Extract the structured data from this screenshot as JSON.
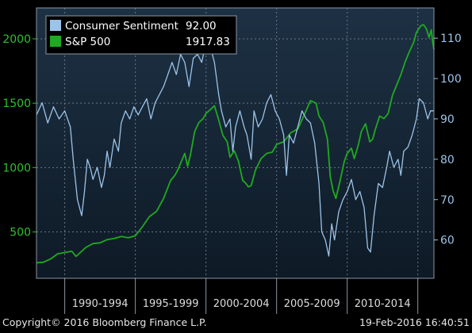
{
  "chart_data": {
    "type": "line",
    "x_range": [
      1988.0,
      2016.14
    ],
    "left_axis": {
      "ticks": [
        500,
        1000,
        1500,
        2000
      ],
      "range": [
        140,
        2240
      ],
      "color": "#2fbf2f"
    },
    "right_axis": {
      "ticks": [
        60,
        70,
        80,
        90,
        100,
        110
      ],
      "range": [
        50.5,
        117.5
      ],
      "color": "#9cc3e8"
    },
    "x_tick_labels": [
      {
        "label": "1990-1994",
        "center": 1992.5
      },
      {
        "label": "1995-1999",
        "center": 1997.5
      },
      {
        "label": "2000-2004",
        "center": 2002.5
      },
      {
        "label": "2005-2009",
        "center": 2007.5
      },
      {
        "label": "2010-2014",
        "center": 2012.5
      }
    ],
    "x_separators": [
      1990.0,
      1995.0,
      2000.0,
      2005.0,
      2010.0,
      2015.0
    ],
    "series": [
      {
        "name": "Consumer Sentiment",
        "last_value": "92.00",
        "axis": "right",
        "color": "#9cc3e8",
        "x": [
          1988.0,
          1988.4,
          1988.8,
          1989.2,
          1989.6,
          1990.0,
          1990.4,
          1990.6,
          1990.9,
          1991.2,
          1991.4,
          1991.6,
          1991.8,
          1992.0,
          1992.3,
          1992.6,
          1992.8,
          1993.0,
          1993.2,
          1993.5,
          1993.8,
          1994.0,
          1994.3,
          1994.6,
          1994.9,
          1995.2,
          1995.5,
          1995.8,
          1996.1,
          1996.4,
          1996.7,
          1997.0,
          1997.3,
          1997.6,
          1997.9,
          1998.2,
          1998.5,
          1998.8,
          1999.1,
          1999.4,
          1999.7,
          2000.0,
          2000.3,
          2000.6,
          2000.9,
          2001.1,
          2001.4,
          2001.7,
          2001.9,
          2002.1,
          2002.4,
          2002.7,
          2002.9,
          2003.2,
          2003.4,
          2003.7,
          2004.0,
          2004.3,
          2004.6,
          2004.9,
          2005.2,
          2005.5,
          2005.7,
          2005.9,
          2006.2,
          2006.5,
          2006.8,
          2007.1,
          2007.4,
          2007.7,
          2008.0,
          2008.2,
          2008.45,
          2008.7,
          2008.9,
          2009.1,
          2009.4,
          2009.7,
          2010.0,
          2010.3,
          2010.6,
          2010.9,
          2011.2,
          2011.45,
          2011.65,
          2011.9,
          2012.2,
          2012.5,
          2012.8,
          2013.0,
          2013.3,
          2013.6,
          2013.8,
          2014.0,
          2014.3,
          2014.6,
          2014.9,
          2015.1,
          2015.4,
          2015.7,
          2015.9,
          2016.14
        ],
        "values": [
          91,
          94,
          89,
          93,
          90,
          92,
          88,
          80,
          70,
          66,
          72,
          80,
          78,
          75,
          78,
          73,
          76,
          82,
          78,
          85,
          82,
          89,
          92,
          90,
          93,
          91,
          93,
          95,
          90,
          94,
          96,
          98,
          101,
          104,
          101,
          106,
          104,
          98,
          105,
          106,
          104,
          109,
          108,
          104,
          96,
          92,
          88,
          90,
          82,
          88,
          92,
          88,
          86,
          80,
          92,
          88,
          90,
          94,
          96,
          92,
          90,
          86,
          76,
          86,
          84,
          88,
          92,
          90,
          89,
          84,
          74,
          62,
          60,
          56,
          64,
          60,
          67,
          70,
          72,
          75,
          70,
          72,
          68,
          58,
          57,
          66,
          74,
          73,
          78,
          82,
          78,
          80,
          76,
          82,
          83,
          86,
          90,
          95,
          94,
          90,
          92,
          92
        ]
      },
      {
        "name": "S&P 500",
        "last_value": "1917.83",
        "axis": "left",
        "color": "#1faa1f",
        "x": [
          1988.0,
          1988.5,
          1989.0,
          1989.5,
          1990.0,
          1990.5,
          1990.8,
          1991.0,
          1991.5,
          1992.0,
          1992.5,
          1993.0,
          1993.5,
          1994.0,
          1994.5,
          1995.0,
          1995.5,
          1996.0,
          1996.5,
          1997.0,
          1997.5,
          1997.8,
          1998.0,
          1998.5,
          1998.7,
          1998.9,
          1999.2,
          1999.5,
          1999.8,
          2000.0,
          2000.3,
          2000.6,
          2000.9,
          2001.2,
          2001.5,
          2001.7,
          2002.0,
          2002.3,
          2002.6,
          2002.8,
          2003.0,
          2003.2,
          2003.5,
          2003.9,
          2004.3,
          2004.7,
          2005.0,
          2005.5,
          2006.0,
          2006.5,
          2007.0,
          2007.4,
          2007.8,
          2008.0,
          2008.3,
          2008.6,
          2008.8,
          2009.0,
          2009.2,
          2009.5,
          2009.8,
          2010.0,
          2010.3,
          2010.5,
          2010.8,
          2011.0,
          2011.3,
          2011.6,
          2011.8,
          2012.0,
          2012.3,
          2012.6,
          2012.9,
          2013.2,
          2013.5,
          2013.8,
          2014.1,
          2014.4,
          2014.7,
          2014.9,
          2015.2,
          2015.4,
          2015.6,
          2015.8,
          2015.95,
          2016.05,
          2016.14
        ],
        "values": [
          260,
          265,
          290,
          330,
          340,
          350,
          310,
          330,
          380,
          410,
          415,
          440,
          450,
          465,
          455,
          470,
          540,
          620,
          660,
          760,
          900,
          940,
          980,
          1110,
          1010,
          1100,
          1280,
          1350,
          1380,
          1420,
          1450,
          1480,
          1370,
          1250,
          1200,
          1080,
          1130,
          1050,
          900,
          880,
          850,
          860,
          980,
          1070,
          1110,
          1120,
          1180,
          1200,
          1270,
          1300,
          1420,
          1520,
          1500,
          1400,
          1350,
          1220,
          930,
          820,
          760,
          900,
          1050,
          1110,
          1150,
          1070,
          1180,
          1280,
          1340,
          1200,
          1220,
          1300,
          1400,
          1380,
          1420,
          1560,
          1640,
          1720,
          1820,
          1900,
          1970,
          2050,
          2100,
          2110,
          2080,
          2010,
          2070,
          1980,
          1917.83
        ]
      }
    ]
  },
  "legend": [
    {
      "name": "Consumer Sentiment",
      "value": "92.00"
    },
    {
      "name": "S&P 500",
      "value": "1917.83"
    }
  ],
  "footer": {
    "copyright": "Copyright© 2016 Bloomberg Finance L.P.",
    "timestamp": "19-Feb-2016 16:40:51"
  },
  "colors": {
    "background": "#000000",
    "plot_top": "#1d3144",
    "plot_bottom": "#0e1a26",
    "grid": "#6a7683",
    "sentiment": "#9cc3e8",
    "sp500": "#1faa1f",
    "left_axis_text": "#2fbf2f",
    "right_axis_text": "#9cc3e8"
  }
}
